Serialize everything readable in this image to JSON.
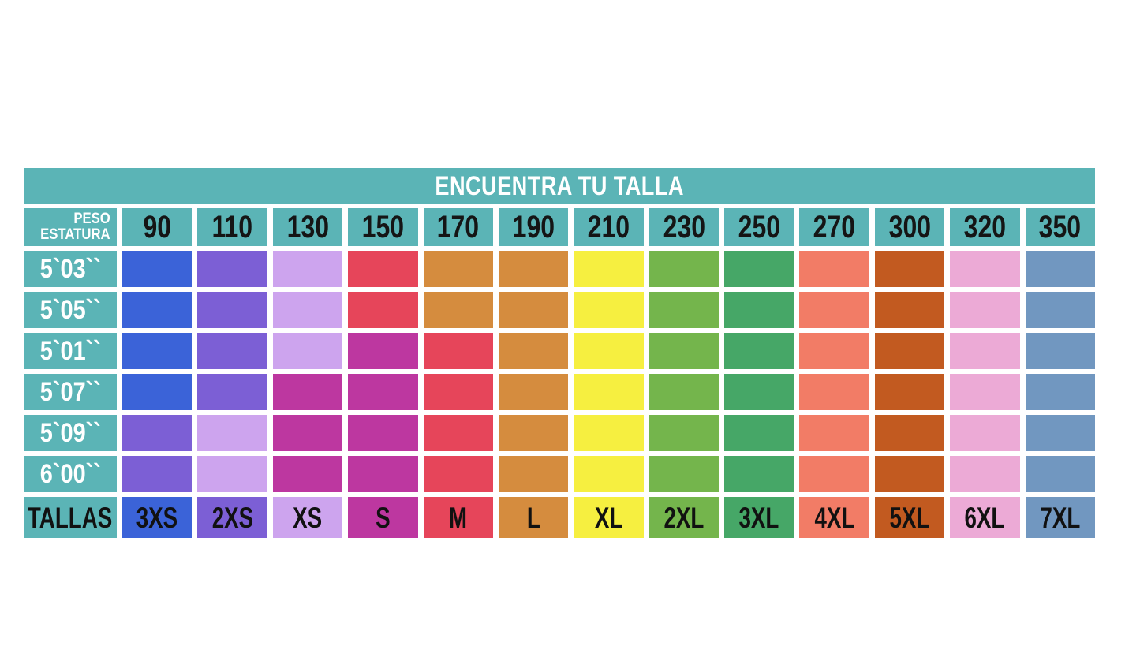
{
  "chart_data": {
    "type": "table",
    "title": "ENCUENTRA TU TALLA",
    "corner": {
      "line1": "PESO",
      "line2": "ESTATURA"
    },
    "tallas_label": "TALLAS",
    "columns_weights": [
      "90",
      "110",
      "130",
      "150",
      "170",
      "190",
      "210",
      "230",
      "250",
      "270",
      "300",
      "320",
      "350"
    ],
    "rows_heights": [
      "5`03``",
      "5`05``",
      "5`01``",
      "5`07``",
      "5`09``",
      "6`00``"
    ],
    "cell_sizes": [
      [
        "3XS",
        "2XS",
        "XS",
        "M",
        "L",
        "L",
        "XL",
        "2XL",
        "3XL",
        "4XL",
        "5XL",
        "6XL",
        "7XL"
      ],
      [
        "3XS",
        "2XS",
        "XS",
        "M",
        "L",
        "L",
        "XL",
        "2XL",
        "3XL",
        "4XL",
        "5XL",
        "6XL",
        "7XL"
      ],
      [
        "3XS",
        "2XS",
        "XS",
        "S",
        "M",
        "L",
        "XL",
        "2XL",
        "3XL",
        "4XL",
        "5XL",
        "6XL",
        "7XL"
      ],
      [
        "3XS",
        "2XS",
        "S",
        "S",
        "M",
        "L",
        "XL",
        "2XL",
        "3XL",
        "4XL",
        "5XL",
        "6XL",
        "7XL"
      ],
      [
        "2XS",
        "XS",
        "S",
        "S",
        "M",
        "L",
        "XL",
        "2XL",
        "3XL",
        "4XL",
        "5XL",
        "6XL",
        "7XL"
      ],
      [
        "2XS",
        "XS",
        "S",
        "S",
        "M",
        "L",
        "XL",
        "2XL",
        "3XL",
        "4XL",
        "5XL",
        "6XL",
        "7XL"
      ]
    ],
    "size_legend": [
      {
        "code": "3XS",
        "color": "#3b63d8"
      },
      {
        "code": "2XS",
        "color": "#7c5fd5"
      },
      {
        "code": "XS",
        "color": "#cda4ee"
      },
      {
        "code": "S",
        "color": "#bd37a0"
      },
      {
        "code": "M",
        "color": "#e6455a"
      },
      {
        "code": "L",
        "color": "#d58c3e"
      },
      {
        "code": "XL",
        "color": "#f6ef40"
      },
      {
        "code": "2XL",
        "color": "#74b54c"
      },
      {
        "code": "3XL",
        "color": "#46a767"
      },
      {
        "code": "4XL",
        "color": "#f27c66"
      },
      {
        "code": "5XL",
        "color": "#c25a20"
      },
      {
        "code": "6XL",
        "color": "#ecaad6"
      },
      {
        "code": "7XL",
        "color": "#7197c0"
      }
    ],
    "colors": {
      "teal": "#5bb4b6",
      "background": "#ffffff",
      "header_text": "#151515",
      "row_label_text": "#ffffff"
    },
    "layout_hints": {
      "grid_gaps": "white",
      "title_position": "top-center",
      "legend_position": "bottom-row"
    }
  }
}
